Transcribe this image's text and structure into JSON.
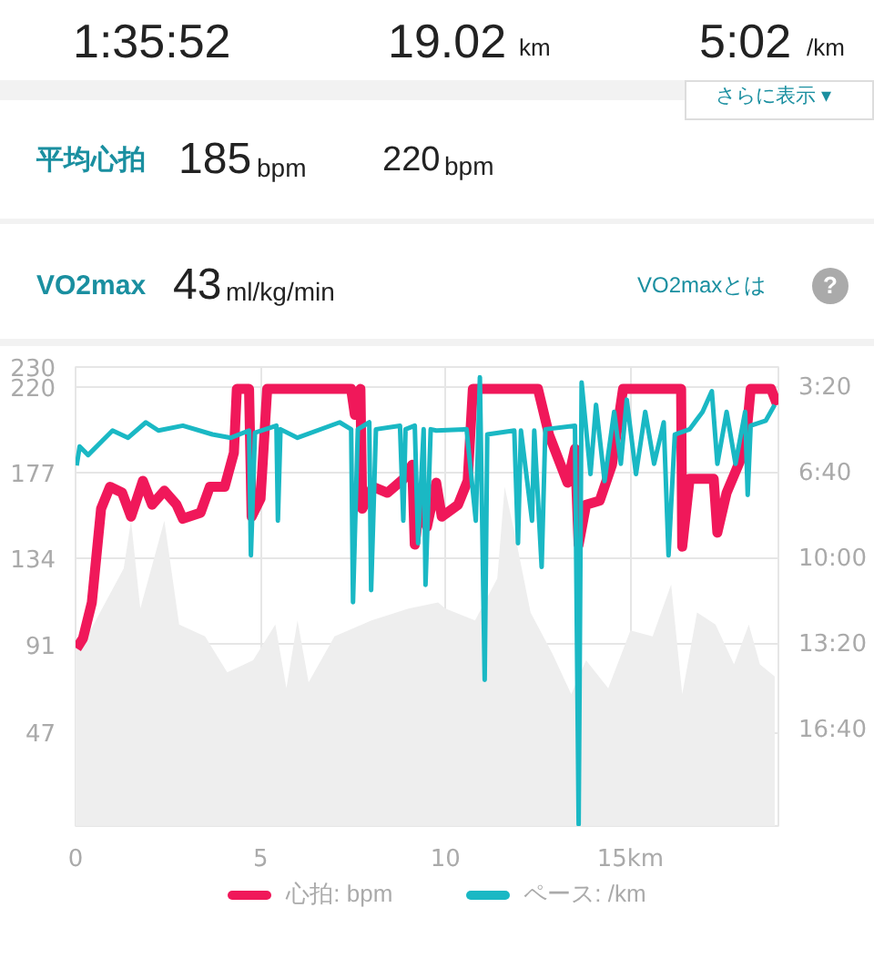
{
  "chart_data": [
    {
      "type": "other",
      "annotations": [
        "1:35:52",
        "19.02",
        "km",
        "5:02",
        "/km",
        "さらに表示 ▾",
        "平均心拍",
        "185",
        "bpm",
        "220",
        "bpm",
        "VO2max",
        "43",
        "ml/kg/min",
        "VO2maxとは",
        "?"
      ]
    },
    {
      "type": "line",
      "xlim": [
        0,
        19.0
      ],
      "xticks": [
        0,
        5,
        10,
        {
          "value": 15,
          "label": "15km"
        }
      ],
      "ylim": [
        0,
        230
      ],
      "yticks": [
        47,
        91,
        134,
        177,
        220,
        230
      ],
      "y2lim": [
        20.37,
        2.53
      ],
      "y2ticks": [
        {
          "value": 3.333,
          "label": "3:20"
        },
        {
          "value": 6.667,
          "label": "6:40"
        },
        {
          "value": 10.0,
          "label": "10:00"
        },
        {
          "value": 13.333,
          "label": "13:20"
        },
        {
          "value": 16.667,
          "label": "16:40"
        }
      ],
      "grid": true,
      "legend": "bottom",
      "line_style": "solid",
      "marker": "none",
      "series": [
        {
          "type": "area",
          "color": "#eeeeee",
          "x": [
            0,
            0.4,
            1.3,
            1.5,
            1.75,
            2.4,
            2.8,
            3.5,
            4.1,
            4.8,
            5.4,
            5.7,
            6.0,
            6.3,
            7.0,
            8.0,
            9.0,
            9.8,
            10,
            10.8,
            11.4,
            11.6,
            11.9,
            12.3,
            12.9,
            13.4,
            13.8,
            14.4,
            15.0,
            15.6,
            16.1,
            16.4,
            16.8,
            17.3,
            17.8,
            18.2,
            18.5,
            18.9
          ],
          "values": [
            89,
            98,
            129,
            153,
            109,
            153,
            101,
            95,
            77,
            83,
            101,
            69,
            103,
            72,
            95,
            103,
            109,
            112,
            109,
            103,
            124,
            170,
            144,
            107,
            86,
            66,
            83,
            69,
            98,
            95,
            121,
            66,
            107,
            101,
            81,
            101,
            81,
            75
          ]
        },
        {
          "name": "心拍: bpm",
          "color": "#f0185a",
          "x": [
            0.03,
            0.2,
            0.44,
            0.69,
            0.93,
            1.26,
            1.5,
            1.82,
            2.07,
            2.4,
            2.73,
            2.9,
            3.38,
            3.63,
            4.03,
            4.28,
            4.36,
            4.69,
            4.76,
            5.0,
            5.18,
            7.45,
            7.55,
            7.7,
            7.75,
            8.04,
            8.43,
            8.87,
            9.1,
            9.17,
            9.36,
            9.5,
            9.75,
            9.9,
            10.34,
            10.6,
            10.74,
            12.5,
            12.8,
            13.3,
            13.5,
            13.6,
            13.8,
            14.17,
            14.5,
            14.8,
            16.37,
            16.4,
            16.6,
            17.25,
            17.35,
            17.6,
            18.1,
            18.25,
            18.8,
            18.97
          ],
          "values": [
            89,
            94,
            112,
            159,
            170,
            167,
            155,
            173,
            161,
            168,
            161,
            154,
            157,
            170,
            170,
            187,
            219,
            219,
            155,
            164,
            219,
            219,
            206,
            219,
            159,
            170,
            167,
            174,
            181,
            141,
            170,
            150,
            172,
            155,
            161,
            173,
            219,
            219,
            196,
            172,
            189,
            141,
            161,
            163,
            181,
            219,
            219,
            140,
            174,
            174,
            147,
            167,
            189,
            219,
            219,
            211
          ]
        },
        {
          "name": "ペース: /km",
          "color": "#1ab8c4",
          "axis": "y2",
          "x": [
            0.03,
            0.11,
            0.34,
            1.0,
            1.42,
            1.9,
            2.24,
            2.9,
            3.7,
            4.2,
            4.69,
            4.74,
            4.85,
            5.43,
            5.47,
            5.54,
            6.0,
            7.14,
            7.45,
            7.5,
            7.63,
            7.94,
            7.99,
            8.12,
            8.77,
            8.86,
            8.92,
            9.17,
            9.26,
            9.41,
            9.46,
            9.6,
            9.75,
            10.57,
            10.82,
            10.93,
            11.06,
            11.13,
            11.86,
            11.96,
            12.04,
            12.34,
            12.4,
            12.6,
            12.7,
            13.5,
            13.6,
            13.68,
            13.92,
            14.07,
            14.3,
            14.56,
            14.74,
            14.9,
            15.15,
            15.4,
            15.64,
            15.9,
            16.03,
            16.2,
            16.6,
            16.95,
            17.2,
            17.35,
            17.6,
            17.84,
            18.1,
            18.17,
            18.25,
            18.66,
            18.9
          ],
          "values": [
            6.36,
            5.62,
            5.95,
            5.0,
            5.28,
            4.68,
            5.0,
            4.81,
            5.15,
            5.28,
            5.0,
            9.85,
            5.08,
            4.81,
            8.5,
            4.95,
            5.28,
            4.68,
            4.95,
            11.67,
            4.95,
            4.68,
            11.2,
            4.95,
            4.81,
            8.5,
            4.95,
            4.81,
            9.38,
            4.95,
            11.0,
            4.95,
            5.0,
            4.95,
            8.5,
            2.93,
            14.69,
            5.15,
            5.0,
            9.38,
            5.0,
            8.5,
            5.0,
            10.3,
            4.95,
            4.81,
            20.3,
            3.13,
            6.69,
            4.0,
            6.96,
            4.27,
            6.29,
            3.8,
            6.69,
            4.27,
            6.29,
            4.68,
            9.85,
            5.15,
            4.95,
            4.27,
            3.47,
            6.29,
            4.27,
            6.29,
            4.27,
            7.5,
            4.81,
            4.61,
            4.0
          ]
        }
      ]
    }
  ]
}
